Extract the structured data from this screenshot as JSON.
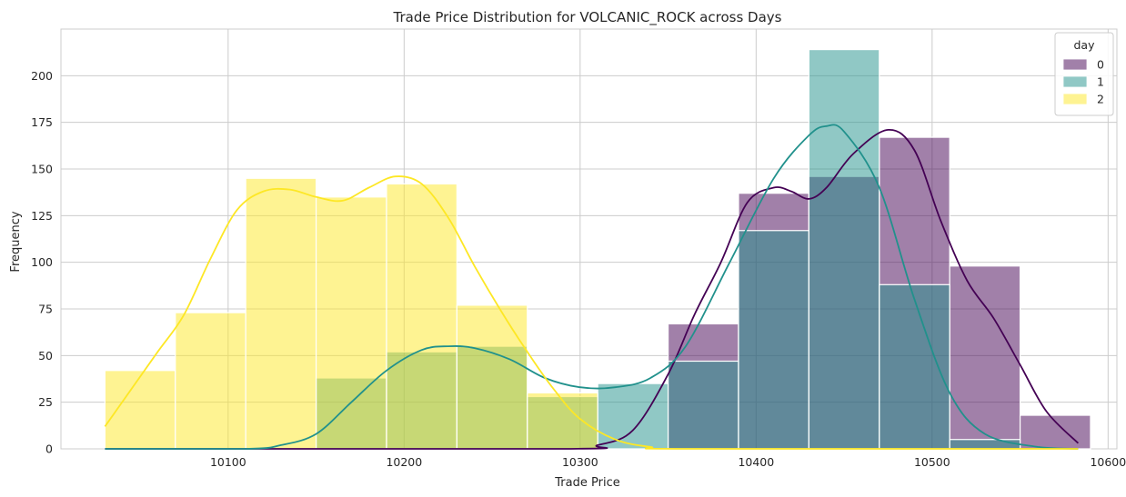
{
  "chart_data": {
    "type": "histogram",
    "title": "Trade Price Distribution for VOLCANIC_ROCK across Days",
    "xlabel": "Trade Price",
    "ylabel": "Frequency",
    "xlim": [
      10005,
      10605
    ],
    "ylim": [
      0,
      225
    ],
    "x_ticks": [
      10100,
      10200,
      10300,
      10400,
      10500,
      10600
    ],
    "y_ticks": [
      0,
      25,
      50,
      75,
      100,
      125,
      150,
      175,
      200
    ],
    "grid": true,
    "legend": {
      "title": "day",
      "position": "top-right"
    },
    "bin_edges": [
      10030,
      10070,
      10110,
      10150,
      10190,
      10230,
      10270,
      10310,
      10350,
      10390,
      10430,
      10470,
      10510,
      10550,
      10590
    ],
    "series": [
      {
        "name": "0",
        "color": "#440154",
        "values": [
          0,
          0,
          0,
          0,
          0,
          0,
          0,
          0,
          67,
          137,
          146,
          167,
          98,
          18
        ],
        "kde": [
          [
            10030,
            0
          ],
          [
            10290,
            0
          ],
          [
            10310,
            2
          ],
          [
            10330,
            10
          ],
          [
            10350,
            40
          ],
          [
            10365,
            72
          ],
          [
            10380,
            100
          ],
          [
            10395,
            132
          ],
          [
            10410,
            140
          ],
          [
            10420,
            138
          ],
          [
            10430,
            134
          ],
          [
            10440,
            140
          ],
          [
            10455,
            158
          ],
          [
            10475,
            171
          ],
          [
            10490,
            160
          ],
          [
            10505,
            122
          ],
          [
            10520,
            90
          ],
          [
            10535,
            70
          ],
          [
            10550,
            45
          ],
          [
            10565,
            20
          ],
          [
            10583,
            3
          ]
        ]
      },
      {
        "name": "1",
        "color": "#21918c",
        "values": [
          0,
          0,
          0,
          38,
          52,
          55,
          28,
          35,
          47,
          117,
          214,
          88,
          5,
          0
        ],
        "kde": [
          [
            10030,
            0
          ],
          [
            10110,
            0
          ],
          [
            10130,
            2
          ],
          [
            10150,
            8
          ],
          [
            10170,
            25
          ],
          [
            10190,
            42
          ],
          [
            10210,
            53
          ],
          [
            10225,
            55
          ],
          [
            10240,
            54
          ],
          [
            10260,
            48
          ],
          [
            10280,
            38
          ],
          [
            10300,
            33
          ],
          [
            10320,
            33
          ],
          [
            10340,
            38
          ],
          [
            10360,
            55
          ],
          [
            10385,
            100
          ],
          [
            10410,
            145
          ],
          [
            10430,
            168
          ],
          [
            10440,
            173
          ],
          [
            10450,
            170
          ],
          [
            10470,
            140
          ],
          [
            10490,
            80
          ],
          [
            10510,
            30
          ],
          [
            10530,
            8
          ],
          [
            10560,
            1
          ],
          [
            10583,
            0
          ]
        ]
      },
      {
        "name": "2",
        "color": "#fde725",
        "values": [
          42,
          73,
          145,
          135,
          142,
          77,
          30,
          0,
          0,
          0,
          0,
          0,
          0,
          0
        ],
        "kde": [
          [
            10030,
            12
          ],
          [
            10045,
            32
          ],
          [
            10060,
            52
          ],
          [
            10075,
            72
          ],
          [
            10090,
            102
          ],
          [
            10105,
            128
          ],
          [
            10120,
            138
          ],
          [
            10135,
            139
          ],
          [
            10150,
            135
          ],
          [
            10165,
            133
          ],
          [
            10180,
            140
          ],
          [
            10195,
            146
          ],
          [
            10210,
            142
          ],
          [
            10225,
            124
          ],
          [
            10240,
            98
          ],
          [
            10255,
            74
          ],
          [
            10270,
            52
          ],
          [
            10285,
            32
          ],
          [
            10300,
            16
          ],
          [
            10320,
            5
          ],
          [
            10340,
            1
          ],
          [
            10360,
            0
          ],
          [
            10583,
            0
          ]
        ]
      }
    ]
  }
}
